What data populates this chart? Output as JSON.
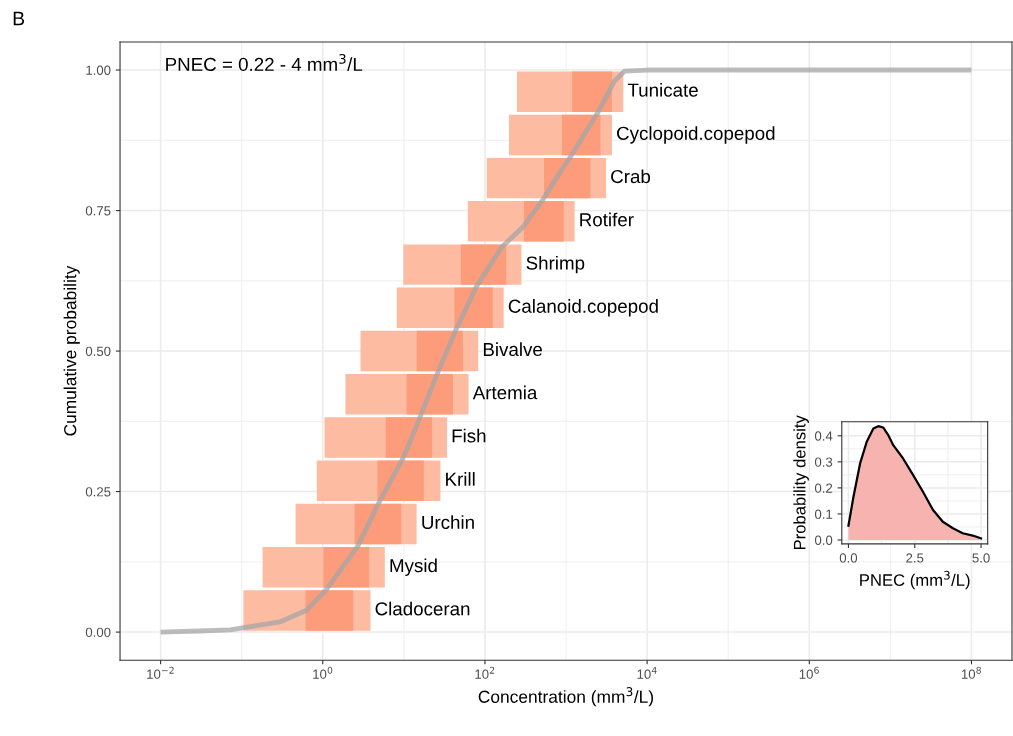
{
  "chart_data": [
    {
      "type": "bar",
      "orientation": "horizontal",
      "title": "B",
      "xlabel": "Concentration (mm$^{3}$/L)",
      "ylabel": "Cumulative probability",
      "log": "x",
      "xlim": [
        0.00316,
        316000000
      ],
      "ylim": [
        -0.05,
        1.05
      ],
      "xticks": [
        {
          "value": 0.01,
          "label": "10$^{−2}$"
        },
        {
          "value": 1,
          "label": "10$^{0}$"
        },
        {
          "value": 100,
          "label": "10$^{2}$"
        },
        {
          "value": 10000,
          "label": "10$^{4}$"
        },
        {
          "value": 1000000,
          "label": "10$^{6}$"
        },
        {
          "value": 100000000,
          "label": "10$^{8}$"
        }
      ],
      "yticks": [
        {
          "value": 0,
          "label": "0.00"
        },
        {
          "value": 0.25,
          "label": "0.25"
        },
        {
          "value": 0.5,
          "label": "0.50"
        },
        {
          "value": 0.75,
          "label": "0.75"
        },
        {
          "value": 1,
          "label": "1.00"
        }
      ],
      "grid": true,
      "legend": false,
      "series": [
        {
          "color": "#fdbba1",
          "x": [
            0.0385,
            0.1154,
            0.1923,
            0.2692,
            0.3462,
            0.4231,
            0.5,
            0.5769,
            0.6538,
            0.7308,
            0.8077,
            0.8846,
            0.9615
          ],
          "base": [
            0.105,
            0.181,
            0.462,
            0.843,
            1.05,
            1.9,
            2.92,
            8.17,
            9.84,
            61.5,
            105,
            198,
            248
          ],
          "values": [
            3.77,
            5.64,
            13.9,
            27.4,
            33.0,
            60.9,
            79.7,
            162,
            272,
            1213,
            3007,
            3483,
            4834
          ]
        },
        {
          "color": "#fc9c7b",
          "x": [
            0.0385,
            0.1154,
            0.1923,
            0.2692,
            0.3462,
            0.4231,
            0.5,
            0.5769,
            0.6538,
            0.7308,
            0.8077,
            0.8846,
            0.9615
          ],
          "base": [
            0.614,
            1.02,
            2.47,
            4.72,
            5.98,
            10.8,
            14.4,
            42.0,
            50.5,
            302,
            536,
            891,
            1191
          ],
          "values": [
            1.76,
            2.71,
            6.82,
            12.9,
            16.3,
            29.5,
            39.1,
            83,
            132,
            633,
            1464,
            1764,
            2490
          ]
        },
        {
          "type": "line",
          "color": "#a6a6a6",
          "line_style": "solid",
          "marker": "none",
          "x": [
            0,
            0.002,
            0.004,
            0.018,
            0.039,
            0.075,
            0.153,
            0.231,
            0.306,
            0.341,
            0.385,
            0.459,
            0.536,
            0.616,
            0.685,
            0.721,
            0.77,
            0.821,
            0.847,
            0.924,
            0.98,
            0.998,
            1,
            1
          ],
          "values": [
            0.01,
            0.03,
            0.072,
            0.295,
            0.63,
            1.1,
            2.7,
            4.95,
            9.5,
            12.1,
            16.1,
            25.7,
            43.2,
            79.4,
            161,
            295,
            521,
            871,
            1148,
            2455,
            3936,
            5248,
            10000,
            100000000
          ]
        }
      ],
      "annotations": [
        "PNEC = 0.22 - 4 mm$^{3}$/L",
        {
          "text": "Cladoceran",
          "x": 3.87,
          "y": 0.0385
        },
        {
          "text": "Mysid",
          "x": 5.82,
          "y": 0.1154
        },
        {
          "text": "Urchin",
          "x": 14.4,
          "y": 0.1923
        },
        {
          "text": "Krill",
          "x": 28.2,
          "y": 0.2692
        },
        {
          "text": "Fish",
          "x": 34.0,
          "y": 0.3462
        },
        {
          "text": "Artemia",
          "x": 62.8,
          "y": 0.4231
        },
        {
          "text": "Bivalve",
          "x": 82.6,
          "y": 0.5
        },
        {
          "text": "Calanoid.copepod",
          "x": 170,
          "y": 0.5769
        },
        {
          "text": "Shrimp",
          "x": 282,
          "y": 0.6538
        },
        {
          "text": "Rotifer",
          "x": 1274,
          "y": 0.7308
        },
        {
          "text": "Crab",
          "x": 3112,
          "y": 0.8077
        },
        {
          "text": "Cyclopoid.copepod",
          "x": 3681,
          "y": 0.8846
        },
        {
          "text": "Tunicate",
          "x": 5082,
          "y": 0.9615
        }
      ]
    },
    {
      "type": "area",
      "xlabel": "PNEC (mm$^{3}$/L)",
      "ylabel": "Probability density",
      "xlim": [
        -0.25,
        5.25
      ],
      "ylim": [
        -0.015,
        0.454
      ],
      "xticks": [
        {
          "value": 0,
          "label": "0.0"
        },
        {
          "value": 2.5,
          "label": "2.5"
        },
        {
          "value": 5,
          "label": "5.0"
        }
      ],
      "yticks": [
        {
          "value": 0,
          "label": "0.0"
        },
        0.1,
        0.2,
        0.3,
        0.4
      ],
      "grid": true,
      "legend": false,
      "series": [
        {
          "color": "#f7b3b0",
          "x": [
            0,
            0.19,
            0.44,
            0.69,
            0.94,
            1.125,
            1.31,
            1.5,
            1.69,
            2.06,
            2.44,
            2.81,
            3.19,
            3.56,
            3.94,
            4.31,
            4.69,
            5.0
          ],
          "values": [
            0.055,
            0.166,
            0.294,
            0.377,
            0.428,
            0.437,
            0.432,
            0.403,
            0.364,
            0.313,
            0.249,
            0.185,
            0.115,
            0.07,
            0.045,
            0.026,
            0.017,
            0.006
          ]
        }
      ]
    }
  ]
}
